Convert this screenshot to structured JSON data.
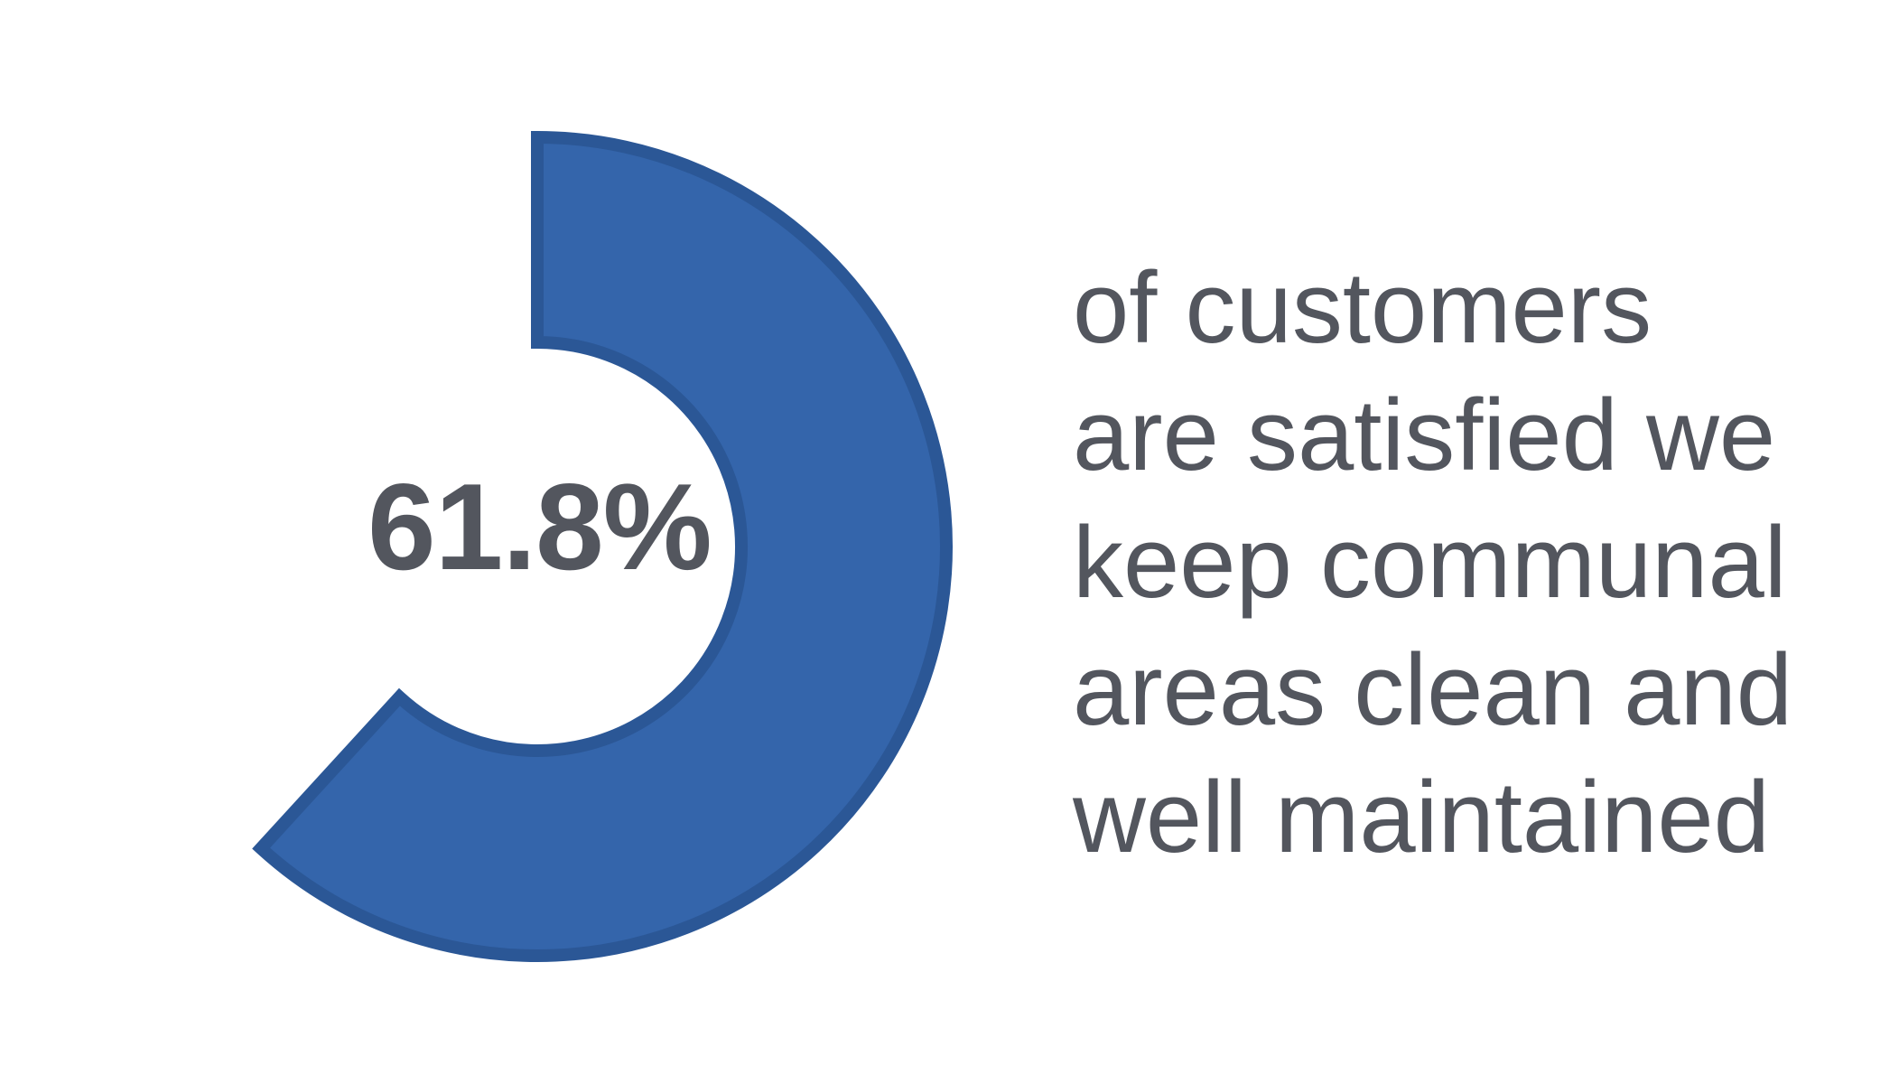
{
  "chart_data": {
    "type": "pie",
    "variant": "donut",
    "values": [
      61.8
    ],
    "max": 100,
    "start_angle": "top",
    "direction": "clockwise",
    "center_label": "61.8%",
    "description_lines": [
      "of customers",
      "are satisfied we",
      "keep communal",
      "areas clean and",
      "well maintained"
    ],
    "colors": {
      "fill": "#3465ab",
      "stroke": "#2b5796",
      "text": "#53565e",
      "background": "#ffffff"
    }
  }
}
